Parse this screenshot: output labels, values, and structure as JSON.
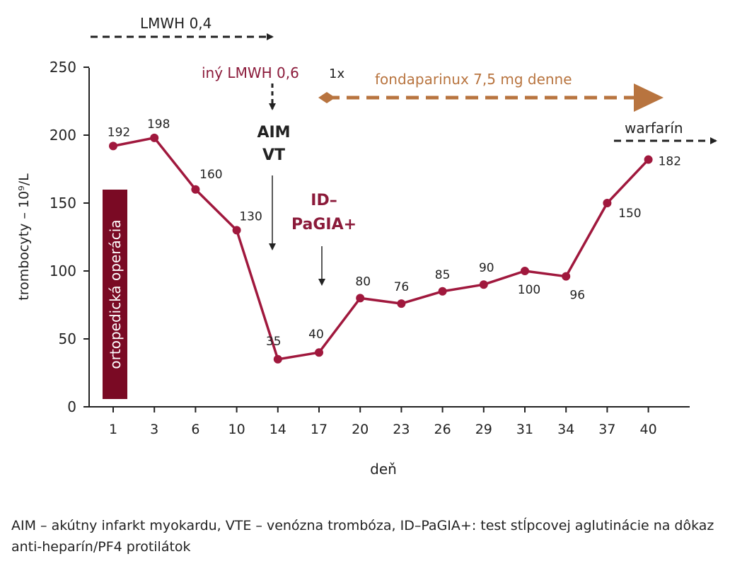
{
  "chart_data": {
    "type": "line",
    "categories": [
      "1",
      "3",
      "6",
      "10",
      "14",
      "17",
      "20",
      "23",
      "26",
      "29",
      "31",
      "34",
      "37",
      "40"
    ],
    "values": [
      192,
      198,
      160,
      130,
      35,
      40,
      80,
      76,
      85,
      90,
      100,
      96,
      150,
      182
    ],
    "xlabel": "deň",
    "ylabel": "trombocyty – 10⁹/L",
    "ylim": [
      0,
      250
    ],
    "yticks": [
      0,
      50,
      100,
      150,
      200,
      250
    ],
    "colors": {
      "series": "#a0183d",
      "operation_box": "#7a0a24",
      "fondaparinux": "#b8743f",
      "dark_arrow": "#222222"
    },
    "annotations": {
      "lmwh": "LMWH  0,4",
      "iny_lmwh": "iný LMWH 0,6",
      "iny_lmwh_times": "1x",
      "aim": "AIM",
      "vt": "VT",
      "id_line1": "ID–",
      "id_line2": "PaGIA+",
      "fondaparinux": "fondaparinux 7,5 mg denne",
      "warfarin": "warfarín",
      "operation": "ortopedická operácia"
    }
  },
  "caption": "AIM – akútny infarkt myokardu, VTE – venózna trombóza, ID–PaGIA+: test stĺpcovej aglutinácie na dôkaz anti-heparín/PF4 protilátok"
}
